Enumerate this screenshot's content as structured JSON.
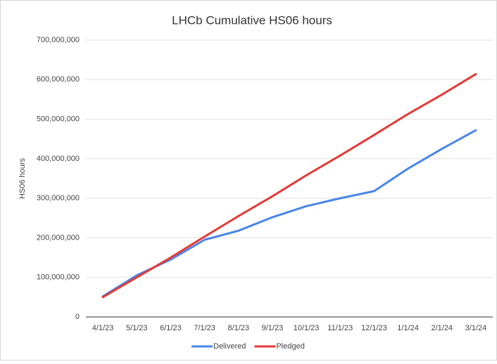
{
  "chart_data": {
    "type": "line",
    "title": "LHCb Cumulative HS06 hours",
    "y_label": "HS06 hours",
    "categories": [
      "4/1/23",
      "5/1/23",
      "6/1/23",
      "7/1/23",
      "8/1/23",
      "9/1/23",
      "10/1/23",
      "11/1/23",
      "12/1/23",
      "1/1/24",
      "2/1/24",
      "3/1/24"
    ],
    "series": [
      {
        "name": "Delivered",
        "color": "#4a86e8",
        "values": [
          52000000,
          105000000,
          145000000,
          195000000,
          218000000,
          252000000,
          280000000,
          300000000,
          318000000,
          375000000,
          425000000,
          472000000
        ]
      },
      {
        "name": "Pledged",
        "color": "#e53935",
        "values": [
          50000000,
          100000000,
          150000000,
          203000000,
          255000000,
          305000000,
          358000000,
          408000000,
          460000000,
          513000000,
          562000000,
          614000000
        ]
      }
    ],
    "ylim": [
      0,
      700000000
    ],
    "yticks": [
      0,
      {
        "value": 100000000,
        "label": "100,000,000"
      },
      {
        "value": 200000000,
        "label": "200,000,000"
      },
      {
        "value": 300000000,
        "label": "300,000,000"
      },
      {
        "value": 400000000,
        "label": "400,000,000"
      },
      {
        "value": 500000000,
        "label": "500,000,000"
      },
      {
        "value": 600000000,
        "label": "600,000,000"
      },
      {
        "value": 700000000,
        "label": "700,000,000"
      }
    ],
    "grid": true,
    "legend": "bottom"
  }
}
